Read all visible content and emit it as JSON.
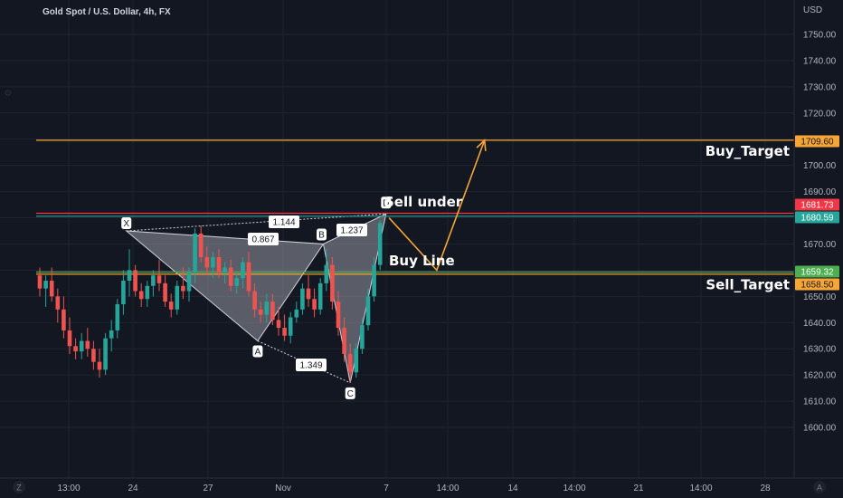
{
  "chart_data": {
    "type": "candlestick",
    "title": "Gold Spot / U.S. Dollar, 4h, FX",
    "currency": "USD",
    "ylim": [
      1595,
      1757
    ],
    "y_ticks": [
      1600,
      1610,
      1620,
      1630,
      1640,
      1650,
      1660,
      1670,
      1680,
      1690,
      1700,
      1710,
      1720,
      1730,
      1740,
      1750
    ],
    "y_tick_labels": [
      "1600.00",
      "1610.00",
      "1620.00",
      "1630.00",
      "1640.00",
      "1650.00",
      "1660.00",
      "1670.00",
      "1680.00",
      "1690.00",
      "1700.00",
      "1710.00",
      "1720.00",
      "1730.00",
      "1740.00",
      "1750.00"
    ],
    "x_ticks": [
      "13:00",
      "24",
      "27",
      "Nov",
      "7",
      "14:00",
      "14",
      "14:00",
      "21",
      "14:00",
      "28"
    ],
    "grid": true,
    "colors": {
      "up": "#26a69a",
      "down": "#ef5350",
      "background": "#131722",
      "pattern_fill": "#9598a1",
      "projection": "#f7a534"
    },
    "ohlc": [
      [
        1658,
        1661,
        1650,
        1653
      ],
      [
        1653,
        1658,
        1646,
        1656
      ],
      [
        1656,
        1661,
        1648,
        1650
      ],
      [
        1650,
        1653,
        1640,
        1645
      ],
      [
        1645,
        1650,
        1634,
        1637
      ],
      [
        1637,
        1642,
        1628,
        1631
      ],
      [
        1631,
        1634,
        1626,
        1629
      ],
      [
        1629,
        1636,
        1626,
        1633
      ],
      [
        1633,
        1638,
        1627,
        1630
      ],
      [
        1630,
        1633,
        1622,
        1625
      ],
      [
        1625,
        1630,
        1619,
        1622
      ],
      [
        1622,
        1636,
        1620,
        1634
      ],
      [
        1634,
        1641,
        1629,
        1637
      ],
      [
        1637,
        1649,
        1634,
        1647
      ],
      [
        1647,
        1660,
        1643,
        1656
      ],
      [
        1656,
        1668,
        1650,
        1660
      ],
      [
        1660,
        1662,
        1650,
        1652
      ],
      [
        1652,
        1655,
        1646,
        1649
      ],
      [
        1649,
        1656,
        1646,
        1654
      ],
      [
        1654,
        1660,
        1650,
        1658
      ],
      [
        1658,
        1664,
        1652,
        1655
      ],
      [
        1655,
        1658,
        1646,
        1648
      ],
      [
        1648,
        1651,
        1642,
        1645
      ],
      [
        1645,
        1656,
        1643,
        1654
      ],
      [
        1654,
        1661,
        1649,
        1652
      ],
      [
        1652,
        1661,
        1648,
        1659
      ],
      [
        1659,
        1676,
        1655,
        1674
      ],
      [
        1674,
        1677,
        1663,
        1665
      ],
      [
        1665,
        1669,
        1658,
        1661
      ],
      [
        1661,
        1667,
        1657,
        1665
      ],
      [
        1665,
        1668,
        1657,
        1659
      ],
      [
        1659,
        1663,
        1655,
        1661
      ],
      [
        1661,
        1664,
        1652,
        1654
      ],
      [
        1654,
        1659,
        1651,
        1657
      ],
      [
        1657,
        1665,
        1653,
        1663
      ],
      [
        1663,
        1667,
        1650,
        1652
      ],
      [
        1652,
        1655,
        1642,
        1645
      ],
      [
        1645,
        1648,
        1640,
        1643
      ],
      [
        1643,
        1651,
        1640,
        1648
      ],
      [
        1648,
        1651,
        1639,
        1641
      ],
      [
        1641,
        1646,
        1635,
        1638
      ],
      [
        1638,
        1643,
        1633,
        1635
      ],
      [
        1635,
        1644,
        1632,
        1642
      ],
      [
        1642,
        1648,
        1640,
        1645
      ],
      [
        1645,
        1655,
        1643,
        1653
      ],
      [
        1653,
        1658,
        1646,
        1649
      ],
      [
        1649,
        1653,
        1642,
        1645
      ],
      [
        1645,
        1657,
        1643,
        1655
      ],
      [
        1655,
        1668,
        1652,
        1662
      ],
      [
        1662,
        1665,
        1645,
        1648
      ],
      [
        1648,
        1652,
        1635,
        1638
      ],
      [
        1638,
        1642,
        1625,
        1628
      ],
      [
        1628,
        1632,
        1617,
        1621
      ],
      [
        1621,
        1632,
        1619,
        1630
      ],
      [
        1630,
        1642,
        1628,
        1639
      ],
      [
        1639,
        1653,
        1637,
        1650
      ],
      [
        1650,
        1665,
        1648,
        1662
      ],
      [
        1662,
        1679,
        1660,
        1678
      ]
    ],
    "pattern": {
      "name": "XABCD",
      "points": [
        {
          "label": "X",
          "index": 14.5,
          "price": 1675
        },
        {
          "label": "A",
          "index": 36.5,
          "price": 1633
        },
        {
          "label": "B",
          "index": 47.5,
          "price": 1670
        },
        {
          "label": "C",
          "index": 52,
          "price": 1617
        },
        {
          "label": "D",
          "index": 58,
          "price": 1681.5
        }
      ],
      "ratios": [
        "1.144",
        "0.867",
        "1.237",
        "1.349"
      ]
    },
    "projection": [
      {
        "index": 58.5,
        "price": 1680
      },
      {
        "index": 66.5,
        "price": 1660
      },
      {
        "index": 74.5,
        "price": 1709.6
      }
    ],
    "levels": [
      {
        "label": "Buy_Target",
        "price_label": "1709.60",
        "price": 1709.6,
        "color": "#f7a534",
        "label_text_color": "#131722"
      },
      {
        "label": "",
        "price_label": "1681.73",
        "price": 1681.73,
        "color": "#f23645",
        "label_text_color": "#ffffff"
      },
      {
        "label": "",
        "price_label": "1680.59",
        "price": 1680.59,
        "color": "#26a69a",
        "label_text_color": "#ffffff"
      },
      {
        "label": "",
        "price_label": "1659.32",
        "price": 1659.32,
        "color": "#4caf50",
        "label_text_color": "#ffffff"
      },
      {
        "label": "Sell_Target",
        "price_label": "1658.50",
        "price": 1658.5,
        "color": "#f7a534",
        "label_text_color": "#131722"
      }
    ],
    "annotations": [
      "Sell under",
      "Buy Line"
    ]
  }
}
